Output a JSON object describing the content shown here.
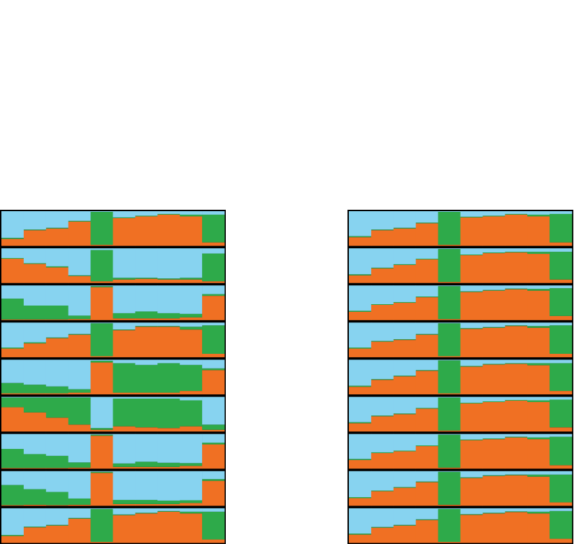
{
  "chart_data": [
    {
      "type": "stacked-bar-panel",
      "ylim": [
        0,
        100
      ],
      "colors": [
        "#f07023",
        "#2eaa4a",
        "#87d3f0"
      ],
      "rows": [
        [
          [
            20,
            45,
            50,
            70,
            3,
            80,
            85,
            90,
            85,
            10
          ],
          [
            3,
            2,
            2,
            2,
            95,
            2,
            2,
            2,
            5,
            80
          ],
          [
            77,
            53,
            48,
            28,
            2,
            18,
            13,
            8,
            10,
            10
          ]
        ],
        [
          [
            70,
            55,
            45,
            20,
            5,
            10,
            12,
            10,
            10,
            5
          ],
          [
            2,
            2,
            3,
            2,
            90,
            5,
            3,
            3,
            5,
            80
          ],
          [
            28,
            43,
            52,
            78,
            5,
            85,
            85,
            87,
            85,
            15
          ]
        ],
        [
          [
            2,
            2,
            2,
            3,
            95,
            5,
            5,
            5,
            8,
            70
          ],
          [
            60,
            40,
            40,
            10,
            3,
            15,
            20,
            15,
            10,
            5
          ],
          [
            38,
            58,
            58,
            87,
            2,
            80,
            75,
            80,
            82,
            25
          ]
        ],
        [
          [
            25,
            40,
            55,
            65,
            3,
            78,
            88,
            88,
            80,
            10
          ],
          [
            3,
            3,
            2,
            2,
            95,
            2,
            2,
            2,
            8,
            82
          ],
          [
            72,
            57,
            43,
            33,
            2,
            20,
            10,
            10,
            12,
            8
          ]
        ],
        [
          [
            3,
            3,
            3,
            5,
            92,
            5,
            5,
            5,
            10,
            70
          ],
          [
            30,
            25,
            20,
            10,
            5,
            85,
            80,
            85,
            75,
            5
          ],
          [
            67,
            72,
            77,
            85,
            3,
            10,
            15,
            10,
            15,
            25
          ]
        ],
        [
          [
            70,
            55,
            40,
            20,
            5,
            15,
            12,
            10,
            15,
            5
          ],
          [
            28,
            43,
            58,
            78,
            5,
            80,
            83,
            85,
            75,
            15
          ],
          [
            2,
            2,
            2,
            2,
            90,
            5,
            5,
            5,
            10,
            80
          ]
        ],
        [
          [
            2,
            2,
            2,
            3,
            95,
            5,
            5,
            5,
            8,
            70
          ],
          [
            55,
            40,
            35,
            15,
            3,
            10,
            15,
            12,
            8,
            5
          ],
          [
            43,
            58,
            63,
            82,
            2,
            85,
            80,
            83,
            84,
            25
          ]
        ],
        [
          [
            2,
            3,
            2,
            3,
            95,
            5,
            5,
            5,
            8,
            72
          ],
          [
            58,
            45,
            38,
            18,
            3,
            12,
            12,
            10,
            8,
            5
          ],
          [
            40,
            52,
            60,
            79,
            2,
            83,
            83,
            85,
            84,
            23
          ]
        ],
        [
          [
            20,
            45,
            50,
            70,
            3,
            80,
            85,
            90,
            85,
            10
          ],
          [
            3,
            2,
            2,
            2,
            95,
            2,
            2,
            2,
            5,
            80
          ],
          [
            77,
            53,
            48,
            28,
            2,
            18,
            13,
            8,
            10,
            10
          ]
        ]
      ]
    },
    {
      "type": "stacked-bar-panel",
      "ylim": [
        0,
        100
      ],
      "colors": [
        "#f07023",
        "#2eaa4a",
        "#87d3f0"
      ],
      "rows": [
        [
          [
            25,
            45,
            50,
            65,
            3,
            82,
            85,
            90,
            85,
            10
          ],
          [
            3,
            2,
            2,
            2,
            95,
            2,
            2,
            2,
            5,
            82
          ],
          [
            72,
            53,
            48,
            33,
            2,
            16,
            13,
            8,
            10,
            8
          ]
        ],
        [
          [
            22,
            42,
            52,
            68,
            3,
            80,
            86,
            88,
            84,
            10
          ],
          [
            3,
            2,
            2,
            2,
            95,
            2,
            2,
            2,
            6,
            80
          ],
          [
            75,
            56,
            46,
            30,
            2,
            18,
            12,
            10,
            10,
            10
          ]
        ],
        [
          [
            24,
            44,
            50,
            66,
            3,
            81,
            85,
            89,
            85,
            12
          ],
          [
            3,
            2,
            2,
            2,
            95,
            2,
            2,
            2,
            5,
            80
          ],
          [
            73,
            54,
            48,
            32,
            2,
            17,
            13,
            9,
            10,
            8
          ]
        ],
        [
          [
            25,
            45,
            50,
            65,
            3,
            82,
            85,
            90,
            85,
            10
          ],
          [
            3,
            2,
            2,
            2,
            95,
            2,
            2,
            2,
            5,
            82
          ],
          [
            72,
            53,
            48,
            33,
            2,
            16,
            13,
            8,
            10,
            8
          ]
        ],
        [
          [
            22,
            42,
            52,
            68,
            3,
            80,
            86,
            88,
            84,
            10
          ],
          [
            3,
            2,
            2,
            2,
            95,
            2,
            2,
            2,
            6,
            80
          ],
          [
            75,
            56,
            46,
            30,
            2,
            18,
            12,
            10,
            10,
            10
          ]
        ],
        [
          [
            24,
            44,
            50,
            66,
            3,
            81,
            85,
            89,
            85,
            12
          ],
          [
            3,
            2,
            2,
            2,
            95,
            2,
            2,
            2,
            5,
            80
          ],
          [
            73,
            54,
            48,
            32,
            2,
            17,
            13,
            9,
            10,
            8
          ]
        ],
        [
          [
            25,
            45,
            50,
            65,
            3,
            82,
            85,
            90,
            85,
            10
          ],
          [
            3,
            2,
            2,
            2,
            95,
            2,
            2,
            2,
            5,
            82
          ],
          [
            72,
            53,
            48,
            33,
            2,
            16,
            13,
            8,
            10,
            8
          ]
        ],
        [
          [
            22,
            42,
            52,
            68,
            3,
            80,
            86,
            88,
            84,
            10
          ],
          [
            3,
            2,
            2,
            2,
            95,
            2,
            2,
            2,
            6,
            80
          ],
          [
            75,
            56,
            46,
            30,
            2,
            18,
            12,
            10,
            10,
            10
          ]
        ],
        [
          [
            24,
            44,
            50,
            66,
            3,
            81,
            85,
            89,
            85,
            12
          ],
          [
            3,
            2,
            2,
            2,
            95,
            2,
            2,
            2,
            5,
            80
          ],
          [
            73,
            54,
            48,
            32,
            2,
            17,
            13,
            9,
            10,
            8
          ]
        ]
      ]
    }
  ]
}
